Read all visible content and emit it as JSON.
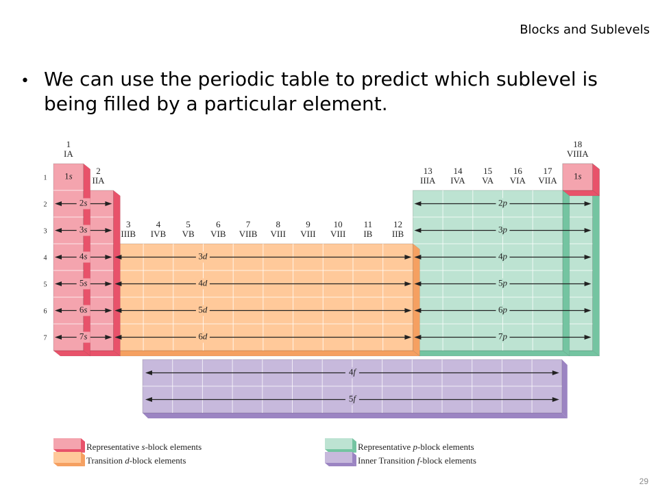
{
  "slide": {
    "title": "Blocks and Sublevels",
    "bullet": "We can use the periodic table to predict which sublevel is being filled by a particular element.",
    "page_number": "29"
  },
  "colors": {
    "s_block": "#f4a4ae",
    "s_block_side": "#e8526a",
    "d_block": "#ffc99a",
    "d_block_side": "#f5a061",
    "p_block": "#bde3d2",
    "p_block_side": "#74c4a1",
    "f_block": "#c7b9dc",
    "f_block_side": "#9b84c2"
  },
  "periods": [
    "1",
    "2",
    "3",
    "4",
    "5",
    "6",
    "7"
  ],
  "groups": {
    "g1": {
      "num": "1",
      "roman": "IA"
    },
    "g2": {
      "num": "2",
      "roman": "IIA"
    },
    "g18": {
      "num": "18",
      "roman": "VIIIA"
    },
    "d": [
      {
        "num": "3",
        "roman": "IIIB"
      },
      {
        "num": "4",
        "roman": "IVB"
      },
      {
        "num": "5",
        "roman": "VB"
      },
      {
        "num": "6",
        "roman": "VIB"
      },
      {
        "num": "7",
        "roman": "VIIB"
      },
      {
        "num": "8",
        "roman": "VIII"
      },
      {
        "num": "9",
        "roman": "VIII"
      },
      {
        "num": "10",
        "roman": "VIII"
      },
      {
        "num": "11",
        "roman": "IB"
      },
      {
        "num": "12",
        "roman": "IIB"
      }
    ],
    "p": [
      {
        "num": "13",
        "roman": "IIIA"
      },
      {
        "num": "14",
        "roman": "IVA"
      },
      {
        "num": "15",
        "roman": "VA"
      },
      {
        "num": "16",
        "roman": "VIA"
      },
      {
        "num": "17",
        "roman": "VIIA"
      }
    ]
  },
  "sublevels": {
    "s_top": {
      "n": "1",
      "l": "s"
    },
    "s": [
      {
        "n": "2",
        "l": "s"
      },
      {
        "n": "3",
        "l": "s"
      },
      {
        "n": "4",
        "l": "s"
      },
      {
        "n": "5",
        "l": "s"
      },
      {
        "n": "6",
        "l": "s"
      },
      {
        "n": "7",
        "l": "s"
      }
    ],
    "he": {
      "n": "1",
      "l": "s"
    },
    "p": [
      {
        "n": "2",
        "l": "p"
      },
      {
        "n": "3",
        "l": "p"
      },
      {
        "n": "4",
        "l": "p"
      },
      {
        "n": "5",
        "l": "p"
      },
      {
        "n": "6",
        "l": "p"
      },
      {
        "n": "7",
        "l": "p"
      }
    ],
    "d": [
      {
        "n": "3",
        "l": "d"
      },
      {
        "n": "4",
        "l": "d"
      },
      {
        "n": "5",
        "l": "d"
      },
      {
        "n": "6",
        "l": "d"
      }
    ],
    "f": [
      {
        "n": "4",
        "l": "f"
      },
      {
        "n": "5",
        "l": "f"
      }
    ]
  },
  "legend": {
    "s": {
      "pre": "Representative ",
      "it": "s",
      "post": "-block elements"
    },
    "d": {
      "pre": "Transition ",
      "it": "d",
      "post": "-block elements"
    },
    "p": {
      "pre": "Representative ",
      "it": "p",
      "post": "-block elements"
    },
    "f": {
      "pre": "Inner Transition ",
      "it": "f",
      "post": "-block elements"
    }
  }
}
